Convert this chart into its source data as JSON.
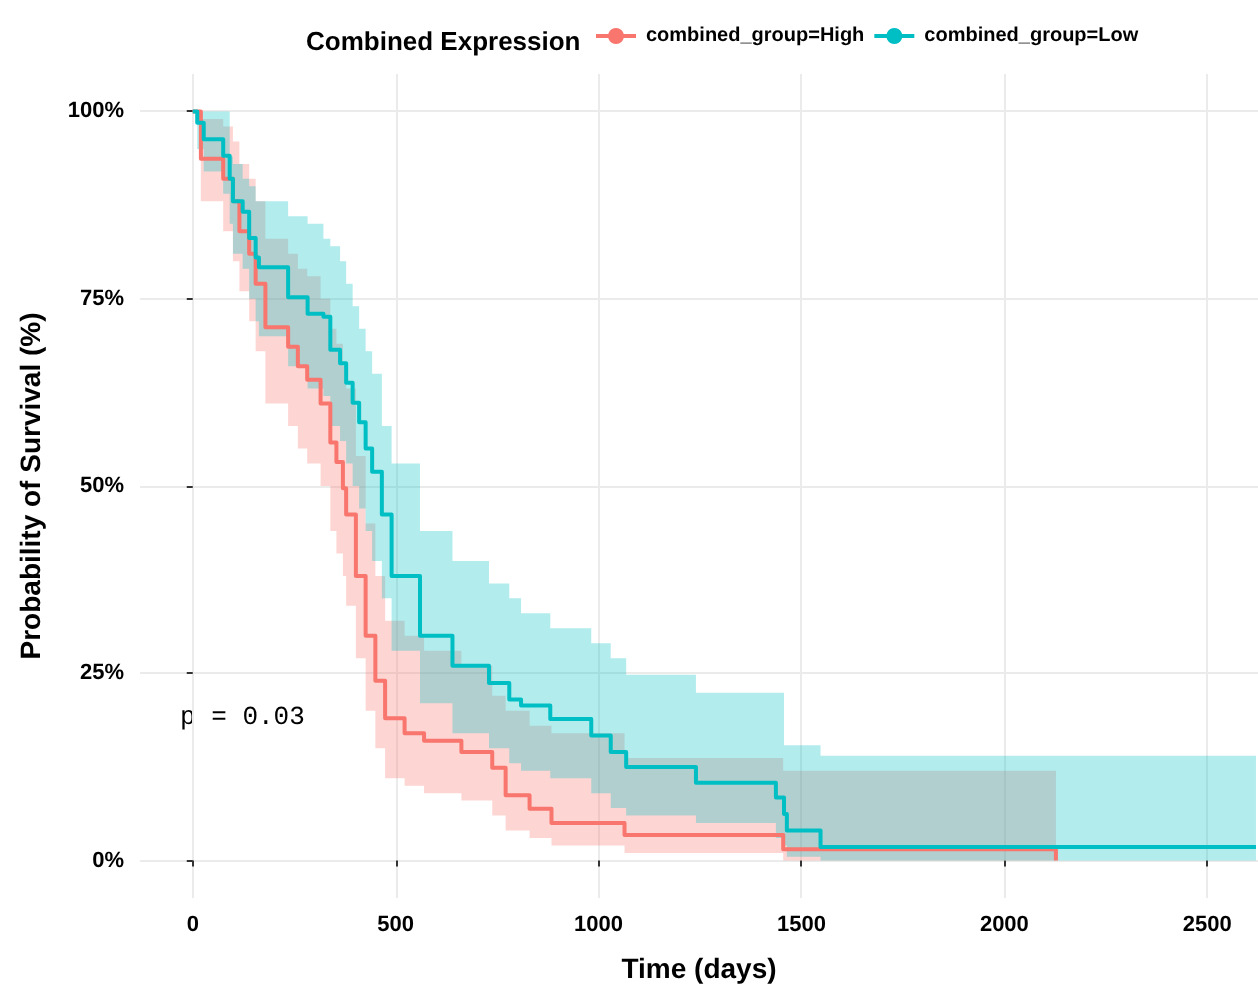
{
  "chart_data": {
    "type": "step",
    "xlabel": "Time (days)",
    "ylabel": "Probability of Survival (%)",
    "legend_title": "Combined Expression",
    "legend": "top",
    "grid": true,
    "xlim": [
      -130,
      2625
    ],
    "xticks": [
      0,
      500,
      1000,
      1500,
      2000,
      2500
    ],
    "ylim": [
      -5,
      105
    ],
    "yticks": [
      {
        "value": 0,
        "label": "0%"
      },
      {
        "value": 25,
        "label": "25%"
      },
      {
        "value": 50,
        "label": "50%"
      },
      {
        "value": 75,
        "label": "75%"
      },
      {
        "value": 100,
        "label": "100%"
      }
    ],
    "annotations": [
      "p = 0.03"
    ],
    "series": [
      {
        "name": "combined_group=High",
        "color": "#f8766d",
        "x": [
          0,
          20,
          75,
          99,
          115,
          139,
          155,
          179,
          235,
          259,
          282,
          315,
          339,
          354,
          370,
          378,
          402,
          426,
          450,
          474,
          522,
          570,
          662,
          738,
          771,
          830,
          884,
          1064,
          1455,
          2127
        ],
        "values": [
          100,
          93.7,
          91,
          88,
          84,
          81,
          77,
          71.2,
          68.6,
          66,
          64.2,
          61,
          55.8,
          53.2,
          49.7,
          46.2,
          38,
          30,
          24,
          19,
          17,
          16,
          14.5,
          12.4,
          8.7,
          6.9,
          5,
          3.4,
          1.5,
          0
        ],
        "lower": [
          100,
          88,
          84,
          80,
          76,
          72,
          68,
          61,
          58,
          55,
          53,
          50,
          44,
          41,
          38,
          34,
          27,
          20,
          15,
          11,
          10,
          9,
          8,
          6,
          4,
          3,
          2,
          1,
          0,
          0
        ],
        "upper": [
          100,
          99,
          98,
          96,
          93,
          91,
          88,
          83,
          81,
          79,
          78,
          75,
          71,
          69,
          66,
          63,
          54,
          45,
          38,
          32,
          30,
          28,
          26,
          22,
          20,
          18,
          17,
          13.7,
          12,
          12
        ]
      },
      {
        "name": "combined_group=Low",
        "color": "#00bfc4",
        "x": [
          0,
          11,
          27,
          75,
          91,
          99,
          123,
          139,
          155,
          163,
          235,
          283,
          322,
          339,
          363,
          378,
          394,
          410,
          426,
          442,
          466,
          490,
          560,
          640,
          730,
          780,
          809,
          881,
          982,
          1030,
          1068,
          1240,
          1437,
          1457,
          1464,
          1547,
          2620
        ],
        "values": [
          100,
          98.5,
          96.3,
          94.1,
          91,
          88,
          86.6,
          83.1,
          80.5,
          79.2,
          75.2,
          73,
          72.6,
          68.2,
          66.4,
          63.8,
          61.1,
          58.5,
          55,
          51.9,
          46.2,
          38,
          30,
          26,
          23.7,
          21.5,
          20.7,
          18.9,
          16.7,
          14.5,
          12.5,
          10.4,
          8.4,
          6.2,
          4,
          1.8,
          1.8
        ],
        "lower": [
          100,
          95,
          92,
          89,
          85,
          81,
          79,
          75,
          72,
          70,
          66,
          63,
          62,
          58,
          56,
          53,
          50,
          47,
          44,
          40,
          35,
          28,
          21,
          17,
          15,
          13,
          12,
          11,
          9,
          7,
          6,
          5,
          3,
          2,
          0.5,
          0,
          0
        ],
        "upper": [
          100,
          100,
          100,
          100,
          94,
          93,
          91,
          90,
          88,
          88,
          86,
          85,
          83,
          82,
          80,
          77,
          74,
          71,
          68,
          65,
          58,
          53,
          44,
          40,
          37,
          35,
          33,
          31,
          29,
          27,
          24.8,
          22.4,
          22.4,
          15.4,
          15.4,
          14,
          14
        ]
      }
    ]
  }
}
